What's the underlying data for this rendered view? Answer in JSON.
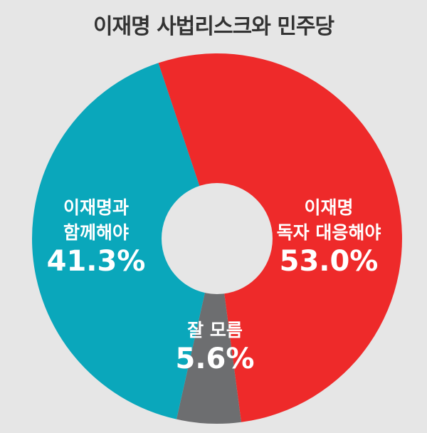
{
  "chart_data": {
    "type": "pie",
    "title": "이재명 사법리스크와 민주당",
    "donut": true,
    "slices": [
      {
        "label_lines": [
          "이재명",
          "독자 대응해야"
        ],
        "value": 53.0,
        "value_label": "53.0%",
        "color": "#ee2a2a"
      },
      {
        "label_lines": [
          "잘 모름"
        ],
        "value": 5.6,
        "value_label": "5.6%",
        "color": "#6d6e70"
      },
      {
        "label_lines": [
          "이재명과",
          "함께해야"
        ],
        "value": 41.3,
        "value_label": "41.3%",
        "color": "#0aa7bb"
      }
    ]
  },
  "colors": {
    "background": "#e6e6e6",
    "title_text": "#333333",
    "hole": "#e6e6e6",
    "label_text": "#ffffff"
  }
}
